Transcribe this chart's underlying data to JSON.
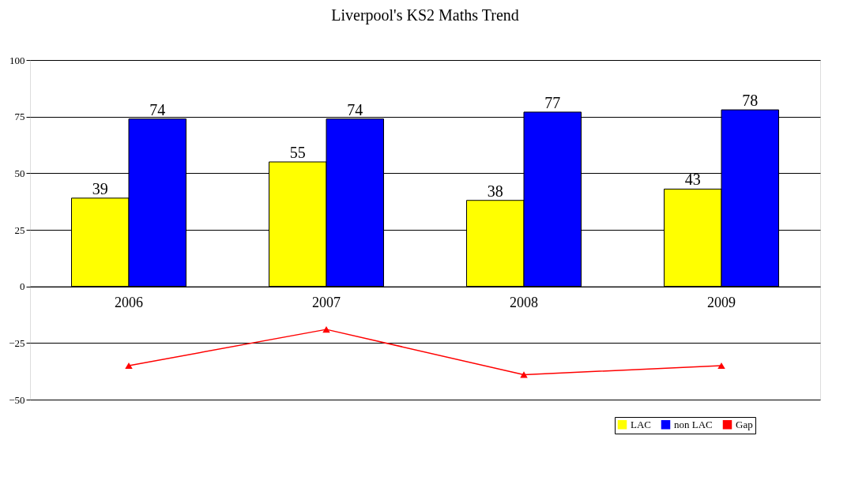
{
  "chart_data": {
    "type": "bar",
    "title": "Liverpool's KS2 Maths Trend",
    "categories": [
      "2006",
      "2007",
      "2008",
      "2009"
    ],
    "series": [
      {
        "name": "LAC",
        "color": "#ffff00",
        "values": [
          39,
          55,
          38,
          43
        ],
        "value_labels": [
          "39",
          "55",
          "38",
          "43"
        ]
      },
      {
        "name": "non LAC",
        "color": "#0000ff",
        "values": [
          74,
          74,
          77,
          78
        ],
        "value_labels": [
          "74",
          "74",
          "77",
          "78"
        ]
      },
      {
        "name": "Gap",
        "type": "line",
        "color": "#ff0000",
        "values": [
          -35,
          -19,
          -39,
          -35
        ],
        "marker": "triangle"
      }
    ],
    "ylim": [
      -50,
      100
    ],
    "yticks": [
      -50,
      -25,
      0,
      25,
      50,
      75,
      100
    ],
    "grid": "y",
    "legend": "bottom right"
  }
}
